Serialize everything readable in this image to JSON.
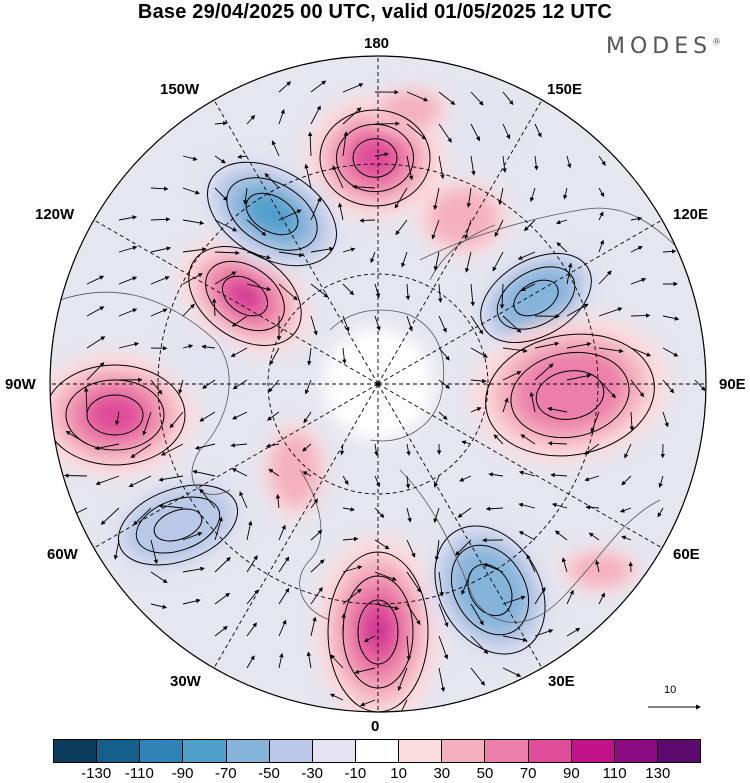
{
  "title": "Base 29/04/2025 00 UTC, valid 01/05/2025 12 UTC",
  "brand": "MODES",
  "brand_mark": "®",
  "longitude_labels": {
    "n180": "180",
    "n150e": "150E",
    "n120e": "120E",
    "n90e": "90E",
    "n60e": "60E",
    "n30e": "30E",
    "n0": "0",
    "n30w": "30W",
    "n60w": "60W",
    "n90w": "90W",
    "n120w": "120W",
    "n150w": "150W"
  },
  "vector_reference": {
    "label": "10",
    "icon": "arrow-right-icon"
  },
  "colorbar": {
    "tick_labels": [
      "-130",
      "-110",
      "-90",
      "-70",
      "-50",
      "-30",
      "-10",
      "10",
      "30",
      "50",
      "70",
      "90",
      "110",
      "130"
    ],
    "colors": [
      "#0d3d5e",
      "#145f8c",
      "#2d84b7",
      "#4f9fcc",
      "#84b4da",
      "#b8c8e6",
      "#e3e3f1",
      "#ffffff",
      "#fbdcdf",
      "#f4b0bf",
      "#ec7fa9",
      "#df4c99",
      "#c0128a",
      "#8d0b80",
      "#5c0a6e"
    ]
  }
}
